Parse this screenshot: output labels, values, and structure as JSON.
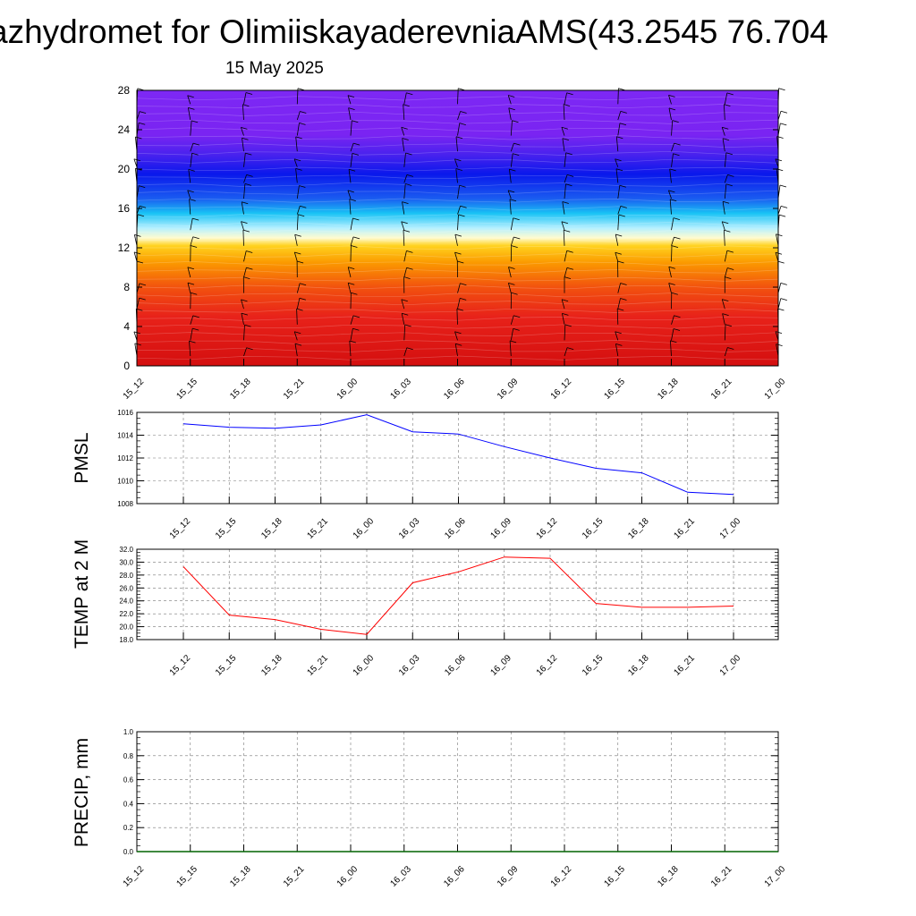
{
  "header": {
    "title": "azhydromet for OlimiiskayaderevniaAMS(43.2545 76.704",
    "date": "15 May 2025"
  },
  "time_labels": [
    "15_12",
    "15_15",
    "15_18",
    "15_21",
    "16_00",
    "16_03",
    "16_06",
    "16_09",
    "16_12",
    "16_15",
    "16_18",
    "16_21",
    "17_00"
  ],
  "chart_data": [
    {
      "type": "heatmap",
      "id": "cross-section",
      "x": [
        "15_12",
        "15_15",
        "15_18",
        "15_21",
        "16_00",
        "16_03",
        "16_06",
        "16_09",
        "16_12",
        "16_15",
        "16_18",
        "16_21",
        "17_00"
      ],
      "yticks": [
        0,
        4,
        8,
        12,
        16,
        20,
        24,
        28
      ],
      "ylim": [
        0,
        28
      ],
      "color_stops": [
        {
          "y": 0,
          "color": "#d40f0f"
        },
        {
          "y": 5,
          "color": "#e8221a"
        },
        {
          "y": 8,
          "color": "#f2520e"
        },
        {
          "y": 10.5,
          "color": "#fb9a00"
        },
        {
          "y": 12.2,
          "color": "#ffd21e"
        },
        {
          "y": 13,
          "color": "#fffbd0"
        },
        {
          "y": 14,
          "color": "#b6f0ff"
        },
        {
          "y": 15.5,
          "color": "#19c3f5"
        },
        {
          "y": 17,
          "color": "#1a5cf0"
        },
        {
          "y": 19.5,
          "color": "#0a18ec"
        },
        {
          "y": 21.5,
          "color": "#4a22ee"
        },
        {
          "y": 23.5,
          "color": "#7a24f2"
        },
        {
          "y": 28,
          "color": "#7d28f4"
        }
      ],
      "wind_barbs": true
    },
    {
      "type": "line",
      "id": "pmsl",
      "ylabel": "PMSL",
      "x": [
        "15_12",
        "15_15",
        "15_18",
        "15_21",
        "16_00",
        "16_03",
        "16_06",
        "16_09",
        "16_12",
        "16_15",
        "16_18",
        "16_21",
        "17_00"
      ],
      "series": [
        {
          "color": "#0000ff",
          "values": [
            1015.0,
            1014.7,
            1014.6,
            1014.9,
            1015.8,
            1014.3,
            1014.1,
            1013.0,
            1012.0,
            1011.1,
            1010.7,
            1009.0,
            1008.8
          ]
        }
      ],
      "ylim": [
        1008,
        1016
      ],
      "yticks": [
        1008,
        1010,
        1012,
        1014,
        1016
      ],
      "grid": true
    },
    {
      "type": "line",
      "id": "temp",
      "ylabel": "TEMP at 2 M",
      "x": [
        "15_12",
        "15_15",
        "15_18",
        "15_21",
        "16_00",
        "16_03",
        "16_06",
        "16_09",
        "16_12",
        "16_15",
        "16_18",
        "16_21",
        "17_00"
      ],
      "series": [
        {
          "color": "#ff0000",
          "values": [
            29.3,
            21.8,
            21.1,
            19.6,
            18.8,
            26.8,
            28.5,
            30.8,
            30.6,
            23.6,
            23.0,
            23.0,
            23.2
          ]
        }
      ],
      "ylim": [
        18,
        32
      ],
      "yticks": [
        "18.0",
        "20.0",
        "22.0",
        "24.0",
        "26.0",
        "28.0",
        "30.0",
        "32.0"
      ],
      "grid": true
    },
    {
      "type": "line",
      "id": "precip",
      "ylabel": "PRECIP, mm",
      "x": [
        "15_12",
        "15_15",
        "15_18",
        "15_21",
        "16_00",
        "16_03",
        "16_06",
        "16_09",
        "16_12",
        "16_15",
        "16_18",
        "16_21",
        "17_00"
      ],
      "series": [
        {
          "color": "#006400",
          "values": [
            0,
            0,
            0,
            0,
            0,
            0,
            0,
            0,
            0,
            0,
            0,
            0,
            0
          ]
        }
      ],
      "ylim": [
        0,
        1
      ],
      "yticks": [
        "0.0",
        "0.2",
        "0.4",
        "0.6",
        "0.8",
        "1.0"
      ],
      "grid": true
    }
  ]
}
